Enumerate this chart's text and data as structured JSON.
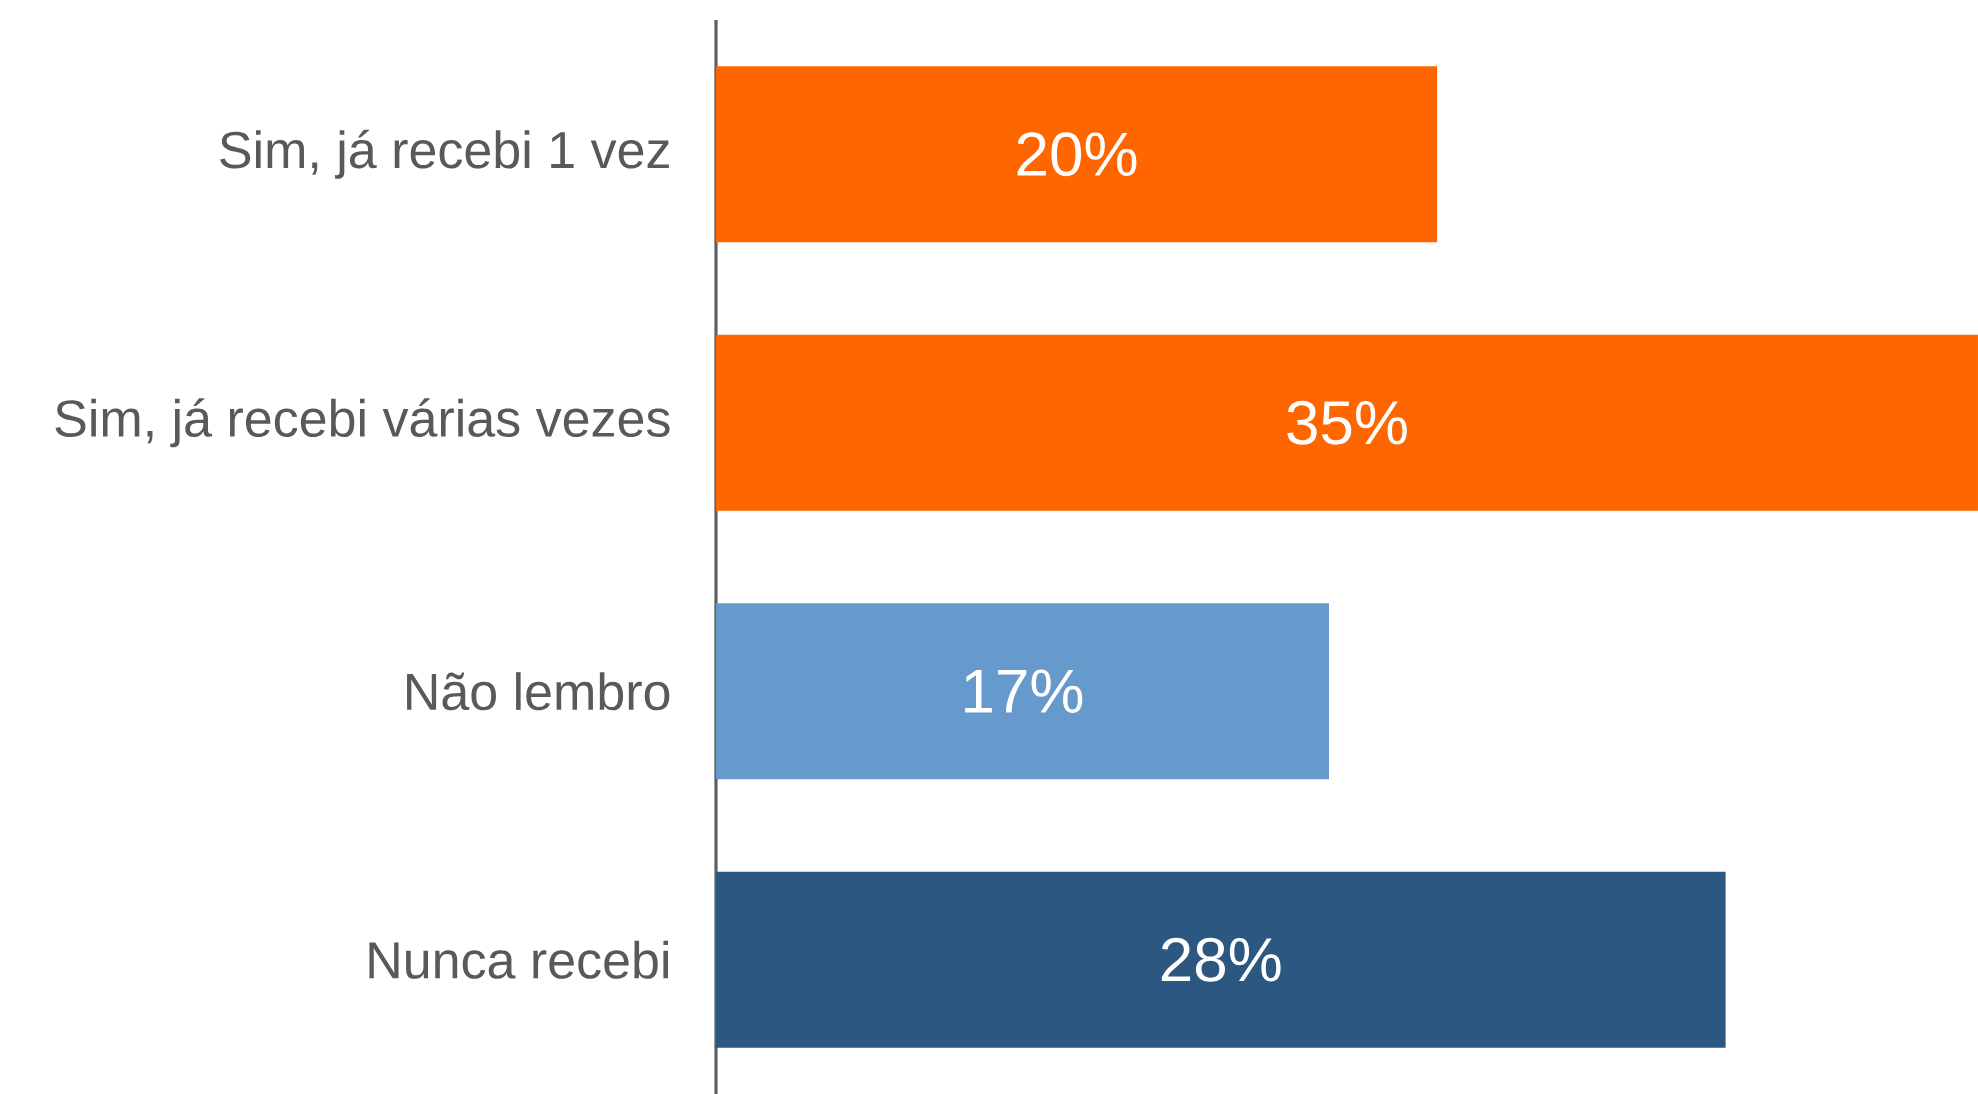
{
  "chart_data": {
    "type": "bar",
    "orientation": "horizontal",
    "categories": [
      "Sim, já recebi 1 vez",
      "Sim, já recebi várias vezes",
      "Não lembro",
      "Nunca recebi"
    ],
    "values": [
      20,
      35,
      17,
      28
    ],
    "value_labels": [
      "20%",
      "35%",
      "17%",
      "28%"
    ],
    "colors": [
      "#ff6600",
      "#ff6600",
      "#6699cc",
      "#2c5781"
    ],
    "xlim": [
      0,
      35
    ],
    "tick_labels": "y"
  }
}
